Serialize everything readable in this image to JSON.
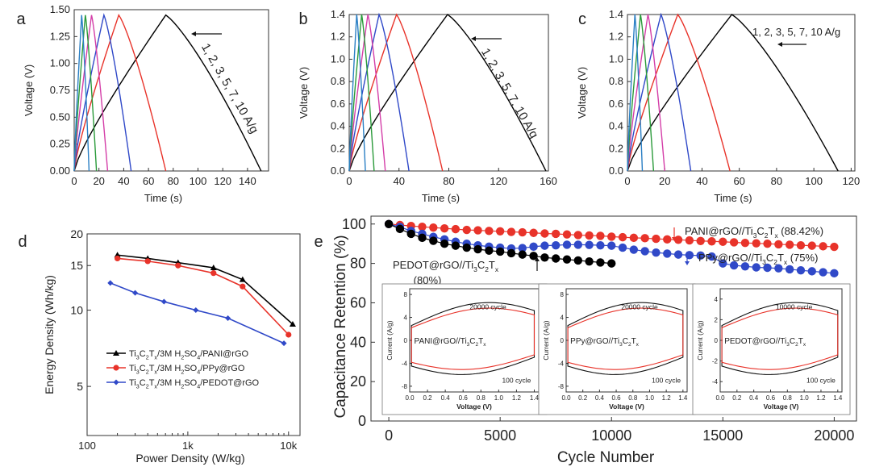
{
  "colors": {
    "charge_series": [
      "#000000",
      "#e8332a",
      "#3049c8",
      "#d43ea8",
      "#2a9a3a",
      "#2a7fc4",
      "#6a2aa8"
    ],
    "d_series": [
      "#000000",
      "#e8332a",
      "#3049c8"
    ],
    "e_series": [
      "#e8332a",
      "#3049c8",
      "#000000"
    ],
    "cv": [
      "#111111",
      "#e8332a"
    ]
  },
  "chart_data": [
    {
      "id": "a",
      "type": "line",
      "letter": "a",
      "xlabel": "Time (s)",
      "ylabel": "Voltage (V)",
      "xlim": [
        0,
        157
      ],
      "ylim": [
        0,
        1.5
      ],
      "xticks": [
        "0",
        "20",
        "40",
        "60",
        "80",
        "100",
        "120",
        "140"
      ],
      "yticks": [
        "0.00",
        "0.25",
        "0.50",
        "0.75",
        "1.00",
        "1.25",
        "1.50"
      ],
      "vmax": 1.45,
      "annotation": "1, 2, 3, 5, 7, 10 A/g",
      "series": [
        {
          "t_peak": 74,
          "t_end": 151
        },
        {
          "t_peak": 36,
          "t_end": 74
        },
        {
          "t_peak": 24,
          "t_end": 46
        },
        {
          "t_peak": 14,
          "t_end": 27
        },
        {
          "t_peak": 9,
          "t_end": 18
        },
        {
          "t_peak": 6,
          "t_end": 12
        }
      ]
    },
    {
      "id": "b",
      "type": "line",
      "letter": "b",
      "xlabel": "Time (s)",
      "ylabel": "Voltage (V)",
      "xlim": [
        0,
        160
      ],
      "ylim": [
        0,
        1.4
      ],
      "xticks": [
        "0",
        "40",
        "80",
        "120",
        "160"
      ],
      "yticks": [
        "0.0",
        "0.2",
        "0.4",
        "0.6",
        "0.8",
        "1.0",
        "1.2",
        "1.4"
      ],
      "vmax": 1.4,
      "annotation": "1, 2, 3, 5, 7, 10 A/g",
      "series": [
        {
          "t_peak": 79,
          "t_end": 158
        },
        {
          "t_peak": 38,
          "t_end": 75
        },
        {
          "t_peak": 24,
          "t_end": 48
        },
        {
          "t_peak": 15,
          "t_end": 29
        },
        {
          "t_peak": 10,
          "t_end": 20
        },
        {
          "t_peak": 6,
          "t_end": 13
        }
      ]
    },
    {
      "id": "c",
      "type": "line",
      "letter": "c",
      "xlabel": "Time (s)",
      "ylabel": "Voltage (V)",
      "xlim": [
        0,
        122
      ],
      "ylim": [
        0,
        1.4
      ],
      "xticks": [
        "0",
        "20",
        "40",
        "60",
        "80",
        "100",
        "120"
      ],
      "yticks": [
        "0.0",
        "0.2",
        "0.4",
        "0.6",
        "0.8",
        "1.0",
        "1.2",
        "1.4"
      ],
      "vmax": 1.4,
      "annotation": "1, 2, 3, 5, 7, 10 A/g",
      "series": [
        {
          "t_peak": 56,
          "t_end": 113
        },
        {
          "t_peak": 27,
          "t_end": 55
        },
        {
          "t_peak": 18,
          "t_end": 34
        },
        {
          "t_peak": 11,
          "t_end": 20
        },
        {
          "t_peak": 7,
          "t_end": 14
        },
        {
          "t_peak": 4,
          "t_end": 8
        }
      ]
    },
    {
      "id": "d",
      "type": "line",
      "letter": "d",
      "xlabel": "Power Density (W/kg)",
      "ylabel": "Energy Density (Wh/kg)",
      "xscale": "log",
      "yscale": "log",
      "xlim": [
        100,
        13000
      ],
      "ylim": [
        3.2,
        20
      ],
      "xticks": [
        {
          "v": 100,
          "label": "100"
        },
        {
          "v": 1000,
          "label": "1k"
        },
        {
          "v": 10000,
          "label": "10k"
        }
      ],
      "yticks": [
        {
          "v": 5,
          "label": "5"
        },
        {
          "v": 10,
          "label": "10"
        },
        {
          "v": 15,
          "label": "15"
        },
        {
          "v": 20,
          "label": "20"
        }
      ],
      "legend": [
        {
          "pre": "Ti",
          "s1": "3",
          "mid": "C",
          "s2": "2",
          "mid2": "T",
          "s3": "x",
          "mid3": "/3M H",
          "s4": "2",
          "post": "SO",
          "s5": "4",
          "tail": "/PANI@rGO"
        },
        {
          "pre": "Ti",
          "s1": "3",
          "mid": "C",
          "s2": "2",
          "mid2": "T",
          "s3": "x",
          "mid3": "/3M H",
          "s4": "2",
          "post": "SO",
          "s5": "4",
          "tail": "/PPy@rGO"
        },
        {
          "pre": "Ti",
          "s1": "3",
          "mid": "C",
          "s2": "2",
          "mid2": "T",
          "s3": "x",
          "mid3": "/3M H",
          "s4": "2",
          "post": "SO",
          "s5": "4",
          "tail": "/PEDOT@rGO"
        }
      ],
      "series": [
        {
          "marker": "triangle",
          "x": [
            200,
            400,
            800,
            1800,
            3500,
            11000
          ],
          "y": [
            16.5,
            16.0,
            15.4,
            14.7,
            13.2,
            8.8
          ]
        },
        {
          "marker": "circle",
          "x": [
            200,
            400,
            800,
            1800,
            3500,
            10000
          ],
          "y": [
            16.0,
            15.6,
            15.0,
            14.0,
            12.4,
            8.0
          ]
        },
        {
          "marker": "diamond",
          "x": [
            170,
            300,
            580,
            1200,
            2500,
            9000
          ],
          "y": [
            12.8,
            11.7,
            10.8,
            10.0,
            9.3,
            7.4
          ]
        }
      ]
    },
    {
      "id": "e",
      "type": "scatter",
      "letter": "e",
      "xlabel": "Cycle Number",
      "ylabel": "Capacitance Retention (%)",
      "xlim": [
        -800,
        21000
      ],
      "ylim": [
        0,
        104
      ],
      "xticks": [
        {
          "v": 0,
          "label": "0"
        },
        {
          "v": 5000,
          "label": "5000"
        },
        {
          "v": 10000,
          "label": "10000"
        },
        {
          "v": 15000,
          "label": "15000"
        },
        {
          "v": 20000,
          "label": "20000"
        }
      ],
      "yticks": [
        {
          "v": 0,
          "label": "0"
        },
        {
          "v": 20,
          "label": "20"
        },
        {
          "v": 40,
          "label": "40"
        },
        {
          "v": 60,
          "label": "60"
        },
        {
          "v": 80,
          "label": "80"
        },
        {
          "v": 100,
          "label": "100"
        }
      ],
      "series": [
        {
          "marker": "circle",
          "x": [
            0,
            500,
            1000,
            1500,
            2000,
            2500,
            3000,
            3500,
            4000,
            4500,
            5000,
            5500,
            6000,
            6500,
            7000,
            7500,
            8000,
            8500,
            9000,
            9500,
            10000,
            10500,
            11000,
            11500,
            12000,
            12500,
            13000,
            13500,
            14000,
            14500,
            15000,
            15500,
            16000,
            16500,
            17000,
            17500,
            18000,
            18500,
            19000,
            19500,
            20000
          ],
          "y": [
            100,
            99.5,
            99,
            98.6,
            98.2,
            97.8,
            97.4,
            97.0,
            96.8,
            96.5,
            96.3,
            96.0,
            95.8,
            95.5,
            95.2,
            95.0,
            94.7,
            94.4,
            94.2,
            94.0,
            93.6,
            93.3,
            93.0,
            92.8,
            92.5,
            92.2,
            92.0,
            91.7,
            91.4,
            91.2,
            91.0,
            90.7,
            90.4,
            90.2,
            90.0,
            89.7,
            89.5,
            89.2,
            89.0,
            88.7,
            88.42
          ]
        },
        {
          "marker": "circle",
          "x": [
            0,
            500,
            1000,
            1500,
            2000,
            2500,
            3000,
            3500,
            4000,
            4500,
            5000,
            5500,
            6000,
            6500,
            7000,
            7500,
            8000,
            8500,
            9000,
            9500,
            10000,
            10500,
            11000,
            11500,
            12000,
            12500,
            13000,
            13500,
            14000,
            14500,
            15000,
            15500,
            16000,
            16500,
            17000,
            17500,
            18000,
            18500,
            19000,
            19500,
            20000
          ],
          "y": [
            100,
            98.5,
            96.5,
            95.0,
            93.5,
            92.2,
            91.0,
            90.0,
            89.2,
            88.5,
            88.0,
            87.6,
            87.8,
            88.5,
            89.0,
            89.2,
            89.5,
            89.5,
            89.4,
            89.2,
            89.0,
            88.0,
            87.0,
            86.2,
            85.5,
            85.0,
            84.5,
            84.2,
            84.0,
            83.5,
            80.0,
            79.0,
            78.5,
            78.0,
            77.8,
            77.5,
            77.0,
            76.5,
            76.0,
            75.5,
            75.0
          ]
        },
        {
          "marker": "circle",
          "x": [
            0,
            500,
            1000,
            1500,
            2000,
            2500,
            3000,
            3500,
            4000,
            4500,
            5000,
            5500,
            6000,
            6500,
            7000,
            7500,
            8000,
            8500,
            9000,
            9500,
            10000
          ],
          "y": [
            100,
            97.5,
            95.0,
            93.0,
            91.5,
            90.0,
            89.0,
            88.0,
            87.2,
            86.5,
            86.0,
            85.2,
            84.5,
            83.8,
            83.0,
            82.5,
            82.0,
            81.5,
            81.0,
            80.5,
            80.0
          ]
        }
      ],
      "labels": {
        "pani_main": "PANI@rGO//Ti",
        "pani_sub1": "3",
        "pani_mid": "C",
        "pani_sub2": "2",
        "pani_mid2": "T",
        "pani_sub3": "x",
        "pani_pct": " (88.42%)",
        "ppy_main": "PPy@rGO//Ti",
        "ppy_sub1": "3",
        "ppy_mid": "C",
        "ppy_sub2": "2",
        "ppy_mid2": "T",
        "ppy_sub3": "x",
        "ppy_pct": " (75%)",
        "pedot_main": "PEDOT@rGO//Ti",
        "pedot_sub1": "3",
        "pedot_mid": "C",
        "pedot_sub2": "2",
        "pedot_mid2": "T",
        "pedot_sub3": "x",
        "pedot_pct": "(80%)"
      },
      "insets": [
        {
          "ylabel": "Current (A/g)",
          "xlabel": "Voltage (V)",
          "yticks": [
            "-8",
            "-4",
            "0",
            "4",
            "8"
          ],
          "xticks": [
            "0.0",
            "0.2",
            "0.4",
            "0.6",
            "0.8",
            "1.0",
            "1.2",
            "1.4"
          ],
          "ylim": [
            -9,
            9
          ],
          "title_main": "PANI@rGO//Ti",
          "title_s1": "3",
          "title_mid": "C",
          "title_s2": "2",
          "title_mid2": "T",
          "title_s3": "x",
          "label_top": "20000 cycle",
          "label_bot": "100 cycle"
        },
        {
          "ylabel": "Current (A/g)",
          "xlabel": "Voltage (V)",
          "yticks": [
            "-8",
            "-4",
            "0",
            "4",
            "8"
          ],
          "xticks": [
            "0.0",
            "0.2",
            "0.4",
            "0.6",
            "0.8",
            "1.0",
            "1.2",
            "1.4"
          ],
          "ylim": [
            -9,
            9
          ],
          "title_main": "PPy@rGO//Ti",
          "title_s1": "3",
          "title_mid": "C",
          "title_s2": "2",
          "title_mid2": "T",
          "title_s3": "x",
          "label_top": "20000 cycle",
          "label_bot": "100 cycle"
        },
        {
          "ylabel": "Current (A/g)",
          "xlabel": "Voltage (V)",
          "yticks": [
            "-4",
            "-2",
            "0",
            "2",
            "4"
          ],
          "xticks": [
            "0.0",
            "0.2",
            "0.4",
            "0.6",
            "0.8",
            "1.0",
            "1.2",
            "1.4"
          ],
          "ylim": [
            -5,
            5
          ],
          "title_main": "PEDOT@rGO//Ti",
          "title_s1": "3",
          "title_mid": "C",
          "title_s2": "2",
          "title_mid2": "T",
          "title_s3": "x",
          "label_top": "10000 cycle",
          "label_bot": "100 cycle"
        }
      ]
    }
  ]
}
